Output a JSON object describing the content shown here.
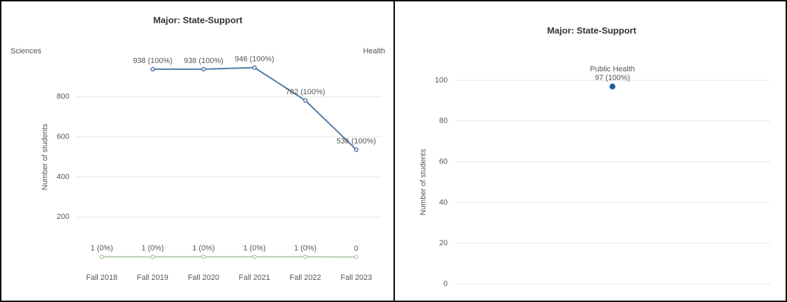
{
  "chart_data": [
    {
      "type": "line",
      "title": "Major: State-Support",
      "panel_labels": [
        "Sciences",
        "Health"
      ],
      "y_label": "Number of students",
      "categories": [
        "Fall 2018",
        "Fall 2019",
        "Fall 2020",
        "Fall 2021",
        "Fall 2022",
        "Fall 2023"
      ],
      "series": [
        {
          "color": "#4e79a7",
          "values": [
            null,
            938,
            938,
            946,
            782,
            536
          ],
          "value_labels": [
            null,
            "938 (100%)",
            "938 (100%)",
            "946 (100%)",
            "782 (100%)",
            "536 (100%)"
          ]
        },
        {
          "color": "#b9cfb4",
          "values": [
            1,
            1,
            1,
            1,
            1,
            0
          ],
          "value_labels": [
            "1 (0%)",
            "1 (0%)",
            "1 (0%)",
            "1 (0%)",
            "1 (0%)",
            "0"
          ]
        }
      ],
      "ylim": [
        0,
        1000
      ],
      "yticks": [
        200,
        400,
        600,
        800
      ],
      "grid": true
    },
    {
      "type": "point",
      "title": "Major: State-Support",
      "panel_labels": [
        "Public Health"
      ],
      "y_label": "Number of students",
      "series": [
        {
          "color": "#1f5f9e",
          "values": [
            97
          ],
          "value_labels": [
            "97 (100%)"
          ]
        }
      ],
      "ylim": [
        0,
        100
      ],
      "yticks": [
        0,
        20,
        40,
        60,
        80,
        100
      ],
      "grid": true
    }
  ]
}
